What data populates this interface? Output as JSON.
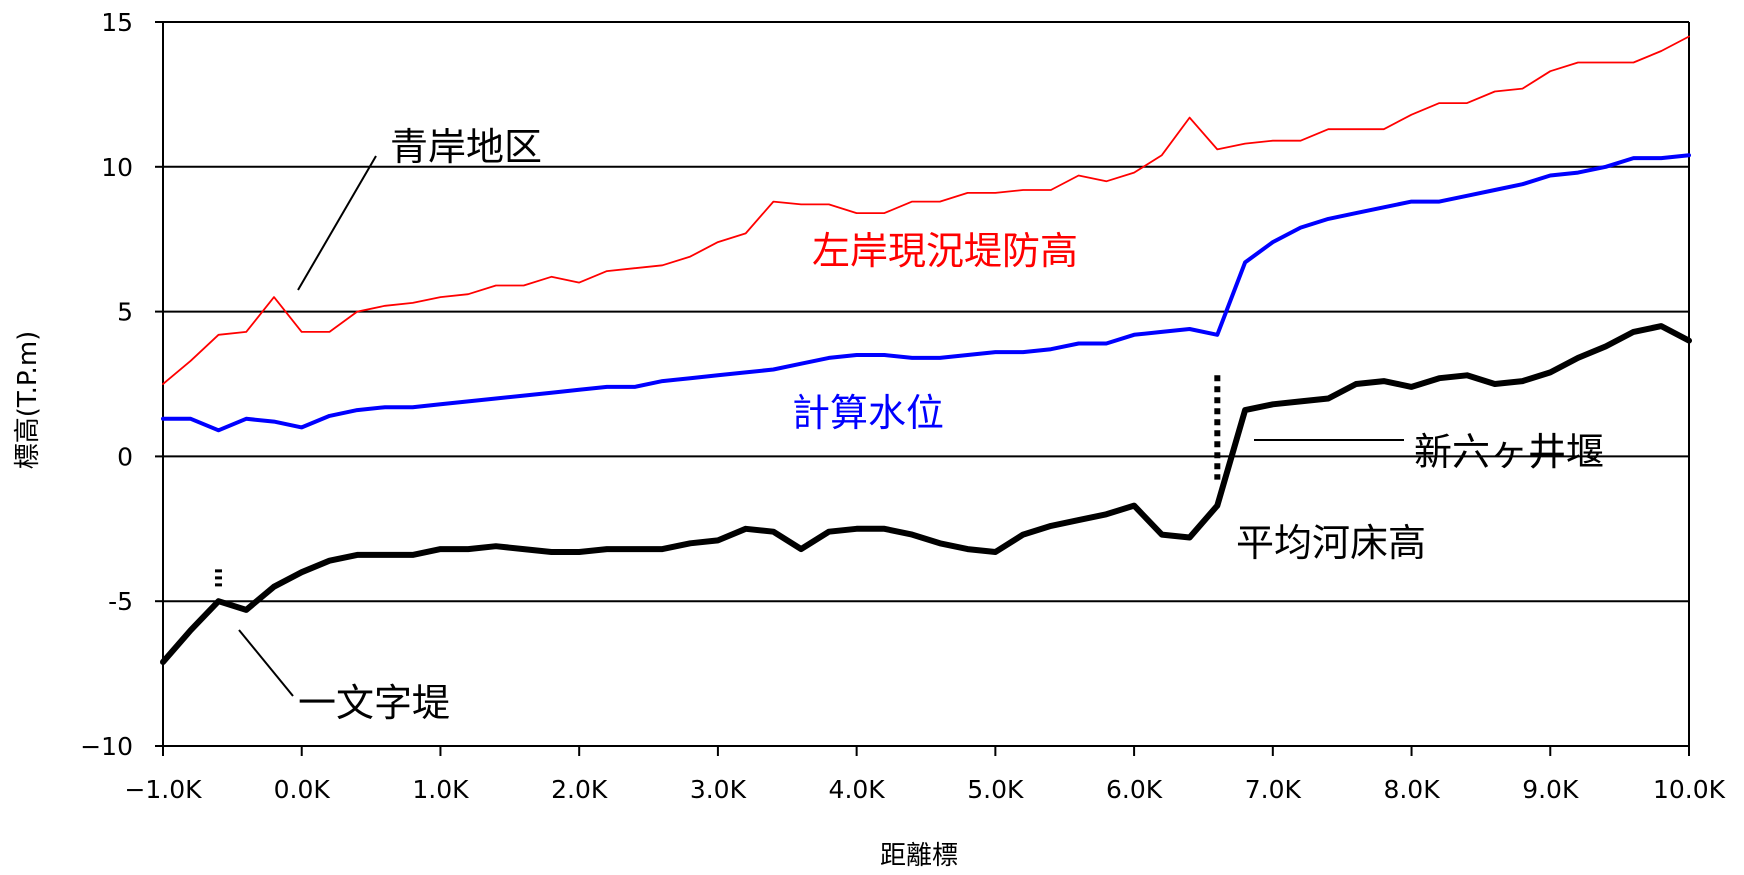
{
  "chart_data": {
    "type": "line",
    "title": "",
    "xlabel": "距離標",
    "ylabel": "標高(T.P.m)",
    "xlim": [
      -1.0,
      10.0
    ],
    "ylim": [
      -10,
      15
    ],
    "x_ticks": [
      -1.0,
      0.0,
      1.0,
      2.0,
      3.0,
      4.0,
      5.0,
      6.0,
      7.0,
      8.0,
      9.0,
      10.0
    ],
    "x_tick_labels": [
      "−1.0K",
      "0.0K",
      "1.0K",
      "2.0K",
      "3.0K",
      "4.0K",
      "5.0K",
      "6.0K",
      "7.0K",
      "8.0K",
      "9.0K",
      "10.0K"
    ],
    "y_ticks": [
      -10,
      -5,
      0,
      5,
      10,
      15
    ],
    "y_tick_labels": [
      "−10",
      "-5",
      "0",
      "5",
      "10",
      "15"
    ],
    "grid": true,
    "series": [
      {
        "name": "左岸現況堤防高",
        "color": "#ff0000",
        "x": [
          -1.0,
          -0.8,
          -0.6,
          -0.4,
          -0.2,
          0.0,
          0.2,
          0.4,
          0.6,
          0.8,
          1.0,
          1.2,
          1.4,
          1.6,
          1.8,
          2.0,
          2.2,
          2.4,
          2.6,
          2.8,
          3.0,
          3.2,
          3.4,
          3.6,
          3.8,
          4.0,
          4.2,
          4.4,
          4.6,
          4.8,
          5.0,
          5.2,
          5.4,
          5.6,
          5.8,
          6.0,
          6.2,
          6.4,
          6.6,
          6.8,
          7.0,
          7.2,
          7.4,
          7.6,
          7.8,
          8.0,
          8.2,
          8.4,
          8.6,
          8.8,
          9.0,
          9.2,
          9.4,
          9.6,
          9.8,
          10.0
        ],
        "values": [
          2.5,
          3.3,
          4.2,
          4.3,
          5.5,
          4.3,
          4.3,
          5.0,
          5.2,
          5.3,
          5.5,
          5.6,
          5.9,
          5.9,
          6.2,
          6.0,
          6.4,
          6.5,
          6.6,
          6.9,
          7.4,
          7.7,
          8.8,
          8.7,
          8.7,
          8.4,
          8.4,
          8.8,
          8.8,
          9.1,
          9.1,
          9.2,
          9.2,
          9.7,
          9.5,
          9.8,
          10.4,
          11.7,
          10.6,
          10.8,
          10.9,
          10.9,
          11.3,
          11.3,
          11.3,
          11.8,
          12.2,
          12.2,
          12.6,
          12.7,
          13.3,
          13.6,
          13.6,
          13.6,
          14.0,
          14.5
        ]
      },
      {
        "name": "計算水位",
        "color": "#0000ff",
        "x": [
          -1.0,
          -0.8,
          -0.6,
          -0.4,
          -0.2,
          0.0,
          0.2,
          0.4,
          0.6,
          0.8,
          1.0,
          1.2,
          1.4,
          1.6,
          1.8,
          2.0,
          2.2,
          2.4,
          2.6,
          2.8,
          3.0,
          3.2,
          3.4,
          3.6,
          3.8,
          4.0,
          4.2,
          4.4,
          4.6,
          4.8,
          5.0,
          5.2,
          5.4,
          5.6,
          5.8,
          6.0,
          6.2,
          6.4,
          6.6,
          6.8,
          7.0,
          7.2,
          7.4,
          7.6,
          7.8,
          8.0,
          8.2,
          8.4,
          8.6,
          8.8,
          9.0,
          9.2,
          9.4,
          9.6,
          9.8,
          10.0
        ],
        "values": [
          1.3,
          1.3,
          0.9,
          1.3,
          1.2,
          1.0,
          1.4,
          1.6,
          1.7,
          1.7,
          1.8,
          1.9,
          2.0,
          2.1,
          2.2,
          2.3,
          2.4,
          2.4,
          2.6,
          2.7,
          2.8,
          2.9,
          3.0,
          3.2,
          3.4,
          3.5,
          3.5,
          3.4,
          3.4,
          3.5,
          3.6,
          3.6,
          3.7,
          3.9,
          3.9,
          4.2,
          4.3,
          4.4,
          4.2,
          6.7,
          7.4,
          7.9,
          8.2,
          8.4,
          8.6,
          8.8,
          8.8,
          9.0,
          9.2,
          9.4,
          9.7,
          9.8,
          10.0,
          10.3,
          10.3,
          10.4
        ]
      },
      {
        "name": "平均河床高",
        "color": "#000000",
        "x": [
          -1.0,
          -0.8,
          -0.6,
          -0.4,
          -0.2,
          0.0,
          0.2,
          0.4,
          0.6,
          0.8,
          1.0,
          1.2,
          1.4,
          1.6,
          1.8,
          2.0,
          2.2,
          2.4,
          2.6,
          2.8,
          3.0,
          3.2,
          3.4,
          3.6,
          3.8,
          4.0,
          4.2,
          4.4,
          4.6,
          4.8,
          5.0,
          5.2,
          5.4,
          5.6,
          5.8,
          6.0,
          6.2,
          6.4,
          6.6,
          6.8,
          7.0,
          7.2,
          7.4,
          7.6,
          7.8,
          8.0,
          8.2,
          8.4,
          8.6,
          8.8,
          9.0,
          9.2,
          9.4,
          9.6,
          9.8,
          10.0
        ],
        "values": [
          -7.1,
          -6.0,
          -5.0,
          -5.3,
          -4.5,
          -4.0,
          -3.6,
          -3.4,
          -3.4,
          -3.4,
          -3.2,
          -3.2,
          -3.1,
          -3.2,
          -3.3,
          -3.3,
          -3.2,
          -3.2,
          -3.2,
          -3.0,
          -2.9,
          -2.5,
          -2.6,
          -3.2,
          -2.6,
          -2.5,
          -2.5,
          -2.7,
          -3.0,
          -3.2,
          -3.3,
          -2.7,
          -2.4,
          -2.2,
          -2.0,
          -1.7,
          -2.7,
          -2.8,
          -1.7,
          1.6,
          1.8,
          1.9,
          2.0,
          2.5,
          2.6,
          2.4,
          2.7,
          2.8,
          2.5,
          2.6,
          2.9,
          3.4,
          3.8,
          4.3,
          4.5,
          4.0
        ]
      }
    ],
    "annotations": {
      "aogishi": "青岸地区",
      "levee": "左岸現況堤防高",
      "water": "計算水位",
      "weir": "新六ヶ井堰",
      "bed": "平均河床高",
      "ichimonji": "一文字堤"
    }
  }
}
